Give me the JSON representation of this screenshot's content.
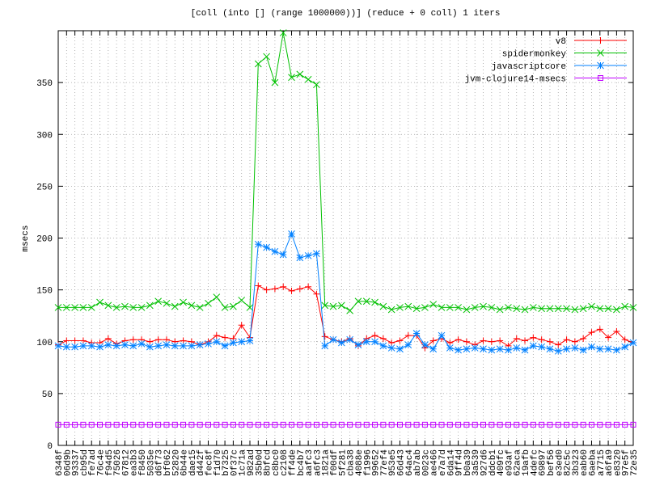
{
  "chart_data": {
    "type": "line",
    "title": "[coll (into [] (range 1000000))] (reduce + 0 coll) 1 iters",
    "y_label": "msecs",
    "categories": [
      "6348f",
      "06d9b",
      "93337",
      "cb95d",
      "fe7ad",
      "76c4e",
      "f94d5",
      "75026",
      "67812",
      "ea3b3",
      "f8450",
      "5035e",
      "d6f73",
      "bf062",
      "52820",
      "6b44e",
      "dae15",
      "d442f",
      "fec8f",
      "f1d70",
      "b7325",
      "0f37c",
      "1c71a",
      "982ad",
      "35b0d",
      "8bfcd",
      "c8bc0",
      "c2108",
      "ff4de",
      "bc4b7",
      "aafc3",
      "a6fc3",
      "1821a",
      "f00df",
      "5f281",
      "cba38",
      "4088e",
      "f1996",
      "99652",
      "77ef4",
      "953e5",
      "66d43",
      "64ac4",
      "ab7ab",
      "0023c",
      "ae466",
      "e7a7d",
      "6da14",
      "9ff4d",
      "b0a39",
      "3a539",
      "927d6",
      "ddcb1",
      "409fc",
      "e93af",
      "62aca",
      "19afb",
      "4defc",
      "69897",
      "bef56",
      "e3ed0",
      "82c5c",
      "3b323",
      "eab60",
      "6aeba",
      "a7715",
      "a6fa9",
      "e8320",
      "97e5f",
      "72e35"
    ],
    "series": [
      {
        "name": "v8",
        "color": "#ff0000",
        "marker": "plus",
        "values": [
          97,
          101,
          101,
          101,
          99,
          99,
          103,
          98,
          101,
          102,
          102,
          100,
          102,
          102,
          100,
          101,
          100,
          97,
          100,
          106,
          104,
          103,
          116,
          104,
          154,
          150,
          151,
          153,
          149,
          151,
          153,
          146,
          105,
          102,
          100,
          103,
          96,
          103,
          106,
          103,
          99,
          101,
          106,
          106,
          94,
          101,
          103,
          99,
          102,
          100,
          97,
          101,
          100,
          101,
          96,
          103,
          101,
          104,
          102,
          100,
          97,
          102,
          100,
          103,
          109,
          112,
          104,
          110,
          102,
          99
        ]
      },
      {
        "name": "spidermonkey",
        "color": "#00c000",
        "marker": "cross",
        "values": [
          133,
          133,
          133,
          133,
          133,
          138,
          135,
          133,
          134,
          133,
          133,
          135,
          139,
          137,
          134,
          138,
          135,
          133,
          137,
          143,
          133,
          134,
          140,
          133,
          368,
          375,
          350,
          398,
          355,
          358,
          353,
          348,
          135,
          134,
          135,
          130,
          139,
          139,
          138,
          134,
          131,
          133,
          134,
          132,
          133,
          136,
          133,
          133,
          133,
          131,
          133,
          134,
          133,
          131,
          133,
          132,
          131,
          133,
          132,
          132,
          132,
          132,
          131,
          132,
          134,
          132,
          132,
          131,
          134,
          133
        ]
      },
      {
        "name": "javascriptcore",
        "color": "#0080ff",
        "marker": "star",
        "values": [
          96,
          95,
          95,
          96,
          96,
          95,
          97,
          96,
          97,
          96,
          98,
          95,
          96,
          97,
          96,
          96,
          96,
          97,
          98,
          100,
          96,
          99,
          100,
          101,
          194,
          191,
          187,
          184,
          204,
          181,
          183,
          185,
          96,
          102,
          99,
          102,
          97,
          100,
          100,
          96,
          94,
          93,
          97,
          108,
          97,
          93,
          106,
          94,
          92,
          93,
          94,
          93,
          92,
          93,
          92,
          94,
          92,
          96,
          95,
          93,
          91,
          93,
          94,
          92,
          95,
          93,
          93,
          92,
          95,
          99
        ]
      },
      {
        "name": "jvm-clojure14-msecs",
        "color": "#c000ff",
        "marker": "square",
        "values": [
          20,
          20,
          20,
          20,
          20,
          20,
          20,
          20,
          20,
          20,
          20,
          20,
          20,
          20,
          20,
          20,
          20,
          20,
          20,
          20,
          20,
          20,
          20,
          20,
          20,
          20,
          20,
          20,
          20,
          20,
          20,
          20,
          20,
          20,
          20,
          20,
          20,
          20,
          20,
          20,
          20,
          20,
          20,
          20,
          20,
          20,
          20,
          20,
          20,
          20,
          20,
          20,
          20,
          20,
          20,
          20,
          20,
          20,
          20,
          20,
          20,
          20,
          20,
          20,
          20,
          20,
          20,
          20,
          20,
          20
        ]
      }
    ],
    "ylim": [
      0,
      400
    ],
    "yticks": [
      0,
      50,
      100,
      150,
      200,
      250,
      300,
      350
    ],
    "grid": true,
    "legend": "top-right"
  }
}
